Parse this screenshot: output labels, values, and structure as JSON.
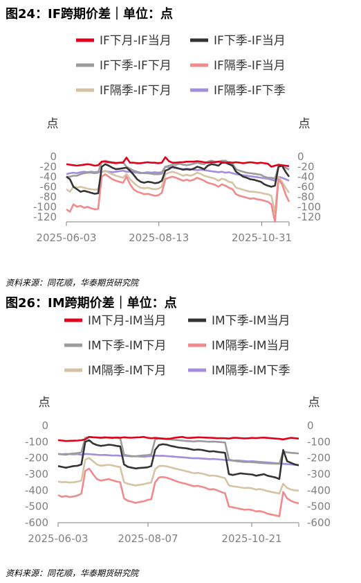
{
  "charts": [
    {
      "title": "图24：IF跨期价差｜单位：点",
      "source": "资料来源：同花顺，华泰期货研究院"
    },
    {
      "title": "图26：IM跨期价差｜单位：点",
      "source": "资料来源：同花顺，华泰期货研究院"
    }
  ],
  "chart_data": [
    {
      "type": "line",
      "title": "图24：IF跨期价差｜单位：点",
      "ylabel_left": "点",
      "ylabel_right": "点",
      "ylim": [
        -130,
        0
      ],
      "yticks": [
        0,
        -20,
        -40,
        -60,
        -80,
        -100,
        -120
      ],
      "xticks": [
        "2025-06-03",
        "2025-08-13",
        "2025-10-31"
      ],
      "x_start": "2025-06-03",
      "x_end": "2025-11-21",
      "legend_position": "top",
      "series": [
        {
          "name": "IF下月-IF当月",
          "color": "#e0001b",
          "values": [
            -15,
            -16,
            -17,
            -18,
            -17,
            -16,
            -15,
            -16,
            -18,
            -17,
            -10,
            -10,
            -11,
            -12,
            -13,
            -12,
            -12,
            -2,
            -12,
            -12,
            -13,
            -13,
            -12,
            -11,
            -12,
            -12,
            -13,
            -12,
            -1,
            -9,
            -12,
            -12,
            -11,
            -11,
            -10,
            -10,
            -10,
            -9,
            -10,
            -11,
            -12,
            -11,
            -11,
            -10,
            -11,
            -12,
            -11,
            -12,
            -11,
            -12,
            -13,
            -12,
            -11,
            -12,
            -13,
            -12,
            -13,
            -14,
            -20,
            -18,
            -16,
            -17,
            -18,
            -19
          ]
        },
        {
          "name": "IF下季-IF当月",
          "color": "#333333",
          "values": [
            -40,
            -45,
            -60,
            -65,
            -70,
            -68,
            -70,
            -72,
            -74,
            -73,
            -20,
            -15,
            -18,
            -22,
            -25,
            -24,
            -23,
            -22,
            -28,
            -36,
            -45,
            -50,
            -52,
            -50,
            -51,
            -53,
            -52,
            -48,
            -28,
            -25,
            -20,
            -22,
            -24,
            -26,
            -25,
            -26,
            -24,
            -20,
            -22,
            -25,
            -18,
            -15,
            -16,
            -18,
            -12,
            -12,
            -15,
            -18,
            -30,
            -35,
            -40,
            -42,
            -45,
            -46,
            -48,
            -50,
            -55,
            -58,
            -60,
            -58,
            -20,
            -18,
            -30,
            -40
          ]
        },
        {
          "name": "IF下季-IF下月",
          "color": "#9b9b9b",
          "values": [
            -40,
            -40,
            -38,
            -38,
            -35,
            -33,
            -32,
            -32,
            -33,
            -32,
            -10,
            -8,
            -10,
            -11,
            -12,
            -12,
            -11,
            -20,
            -24,
            -28,
            -30,
            -32,
            -33,
            -33,
            -34,
            -35,
            -35,
            -34,
            -20,
            -18,
            -16,
            -16,
            -14,
            -16,
            -17,
            -16,
            -14,
            -12,
            -14,
            -15,
            -10,
            -8,
            -10,
            -10,
            -8,
            -8,
            -12,
            -14,
            -25,
            -28,
            -30,
            -32,
            -33,
            -34,
            -35,
            -36,
            -40,
            -42,
            -42,
            -44,
            -20,
            -18,
            -22,
            -26
          ]
        },
        {
          "name": "IF隔季-IF当月",
          "color": "#f08a8c",
          "values": [
            -105,
            -110,
            -95,
            -100,
            -98,
            -102,
            -100,
            -103,
            -105,
            -104,
            -40,
            -35,
            -40,
            -45,
            -48,
            -50,
            -52,
            -40,
            -55,
            -65,
            -70,
            -72,
            -75,
            -74,
            -76,
            -78,
            -77,
            -72,
            -45,
            -42,
            -40,
            -42,
            -45,
            -48,
            -46,
            -48,
            -46,
            -42,
            -45,
            -48,
            -52,
            -54,
            -56,
            -60,
            -55,
            -58,
            -62,
            -65,
            -75,
            -78,
            -80,
            -82,
            -84,
            -83,
            -85,
            -86,
            -88,
            -90,
            -95,
            -130,
            -45,
            -55,
            -75,
            -90
          ]
        },
        {
          "name": "IF隔季-IF下月",
          "color": "#d6c3a3",
          "values": [
            -65,
            -70,
            -60,
            -62,
            -60,
            -62,
            -64,
            -65,
            -66,
            -65,
            -30,
            -28,
            -32,
            -35,
            -38,
            -40,
            -42,
            -35,
            -45,
            -52,
            -58,
            -62,
            -63,
            -62,
            -64,
            -65,
            -64,
            -60,
            -35,
            -32,
            -30,
            -32,
            -35,
            -38,
            -36,
            -38,
            -36,
            -32,
            -34,
            -38,
            -40,
            -42,
            -44,
            -48,
            -44,
            -46,
            -50,
            -52,
            -62,
            -64,
            -66,
            -68,
            -70,
            -70,
            -71,
            -72,
            -74,
            -75,
            -78,
            -112,
            -40,
            -50,
            -62,
            -72
          ]
        },
        {
          "name": "IF隔季-IF下季",
          "color": "#a38ddd",
          "values": [
            -35,
            -33,
            -32,
            -33,
            -31,
            -30,
            -31,
            -30,
            -31,
            -30,
            -30,
            -29,
            -30,
            -31,
            -30,
            -29,
            -28,
            -30,
            -30,
            -31,
            -32,
            -33,
            -32,
            -31,
            -32,
            -31,
            -32,
            -31,
            -20,
            -21,
            -22,
            -23,
            -24,
            -25,
            -24,
            -25,
            -26,
            -27,
            -26,
            -27,
            -28,
            -29,
            -30,
            -31,
            -30,
            -32,
            -31,
            -33,
            -35,
            -36,
            -37,
            -38,
            -39,
            -40,
            -41,
            -42,
            -43,
            -44,
            -46,
            -48,
            -40,
            -42,
            -45,
            -48
          ]
        }
      ]
    },
    {
      "type": "line",
      "title": "图26：IM跨期价差｜单位：点",
      "ylabel_left": "点",
      "ylabel_right": "点",
      "ylim": [
        -600,
        0
      ],
      "yticks": [
        0,
        -100,
        -200,
        -300,
        -400,
        -500,
        -600
      ],
      "xticks": [
        "2025-06-03",
        "2025-08-07",
        "2025-10-21"
      ],
      "x_start": "2025-06-03",
      "x_end": "2025-11-24",
      "legend_position": "top",
      "series": [
        {
          "name": "IM下月-IM当月",
          "color": "#e0001b",
          "values": [
            -90,
            -92,
            -95,
            -94,
            -93,
            -92,
            -90,
            -85,
            -70,
            -72,
            -73,
            -75,
            -72,
            -74,
            -76,
            -73,
            -75,
            -72,
            -74,
            -75,
            -73,
            -72,
            -70,
            -75,
            -78,
            -76,
            -78,
            -80,
            -82,
            -80,
            -75,
            -72,
            -70,
            -75,
            -76,
            -74,
            -72,
            -73,
            -74,
            -75,
            -76,
            -78,
            -77,
            -78,
            -80,
            -76,
            -75,
            -77,
            -79,
            -78,
            -76,
            -77,
            -75,
            -74,
            -76,
            -78,
            -80,
            -82,
            -85,
            -80,
            -75,
            -78,
            -80
          ]
        },
        {
          "name": "IM下季-IM当月",
          "color": "#333333",
          "values": [
            -250,
            -255,
            -260,
            -255,
            -250,
            -248,
            -240,
            -100,
            -90,
            -110,
            -120,
            -125,
            -122,
            -118,
            -120,
            -125,
            -128,
            -240,
            -255,
            -260,
            -265,
            -262,
            -260,
            -258,
            -250,
            -150,
            -120,
            -115,
            -118,
            -125,
            -130,
            -135,
            -138,
            -140,
            -145,
            -150,
            -148,
            -150,
            -155,
            -160,
            -158,
            -162,
            -165,
            -168,
            -300,
            -305,
            -300,
            -295,
            -298,
            -300,
            -302,
            -310,
            -305,
            -300,
            -310,
            -315,
            -320,
            -330,
            -150,
            -220,
            -230,
            -240,
            -245
          ]
        },
        {
          "name": "IM下季-IM下月",
          "color": "#9b9b9b",
          "values": [
            -175,
            -178,
            -180,
            -175,
            -172,
            -170,
            -165,
            -75,
            -70,
            -72,
            -74,
            -76,
            -75,
            -73,
            -74,
            -76,
            -78,
            -180,
            -185,
            -188,
            -190,
            -186,
            -184,
            -182,
            -178,
            -85,
            -80,
            -82,
            -84,
            -86,
            -88,
            -90,
            -92,
            -95,
            -96,
            -98,
            -95,
            -96,
            -98,
            -100,
            -98,
            -100,
            -102,
            -104,
            -210,
            -215,
            -220,
            -222,
            -225,
            -224,
            -226,
            -228,
            -230,
            -232,
            -233,
            -234,
            -235,
            -236,
            -160,
            -165,
            -168,
            -170,
            -172
          ]
        },
        {
          "name": "IM隔季-IM当月",
          "color": "#f08a8c",
          "values": [
            -430,
            -440,
            -435,
            -442,
            -438,
            -432,
            -420,
            -280,
            -265,
            -300,
            -330,
            -340,
            -335,
            -330,
            -338,
            -345,
            -350,
            -450,
            -465,
            -470,
            -478,
            -472,
            -468,
            -460,
            -455,
            -350,
            -320,
            -318,
            -322,
            -330,
            -340,
            -348,
            -355,
            -360,
            -368,
            -375,
            -372,
            -378,
            -385,
            -395,
            -392,
            -400,
            -410,
            -418,
            -500,
            -505,
            -510,
            -515,
            -520,
            -518,
            -522,
            -530,
            -528,
            -535,
            -545,
            -550,
            -555,
            -560,
            -410,
            -450,
            -465,
            -475,
            -480
          ]
        },
        {
          "name": "IM隔季-IM下月",
          "color": "#d6c3a3",
          "values": [
            -345,
            -350,
            -348,
            -352,
            -350,
            -346,
            -340,
            -210,
            -200,
            -220,
            -240,
            -248,
            -245,
            -242,
            -246,
            -252,
            -256,
            -350,
            -360,
            -365,
            -370,
            -366,
            -362,
            -356,
            -352,
            -270,
            -250,
            -248,
            -252,
            -258,
            -265,
            -270,
            -276,
            -282,
            -288,
            -295,
            -292,
            -296,
            -302,
            -310,
            -308,
            -312,
            -318,
            -325,
            -370,
            -375,
            -378,
            -382,
            -386,
            -384,
            -388,
            -395,
            -392,
            -398,
            -405,
            -410,
            -415,
            -420,
            -360,
            -385,
            -395,
            -400,
            -402
          ]
        },
        {
          "name": "IM隔季-IM下季",
          "color": "#a38ddd",
          "values": [
            -175,
            -177,
            -175,
            -176,
            -178,
            -176,
            -180,
            -175,
            -176,
            -178,
            -180,
            -182,
            -181,
            -183,
            -185,
            -184,
            -186,
            -185,
            -188,
            -190,
            -189,
            -191,
            -192,
            -190,
            -188,
            -185,
            -187,
            -186,
            -188,
            -190,
            -192,
            -194,
            -196,
            -198,
            -200,
            -202,
            -201,
            -203,
            -205,
            -207,
            -206,
            -208,
            -210,
            -212,
            -214,
            -216,
            -215,
            -217,
            -219,
            -221,
            -220,
            -222,
            -224,
            -226,
            -228,
            -230,
            -232,
            -234,
            -236,
            -238,
            -240,
            -242,
            -244
          ]
        }
      ]
    }
  ]
}
